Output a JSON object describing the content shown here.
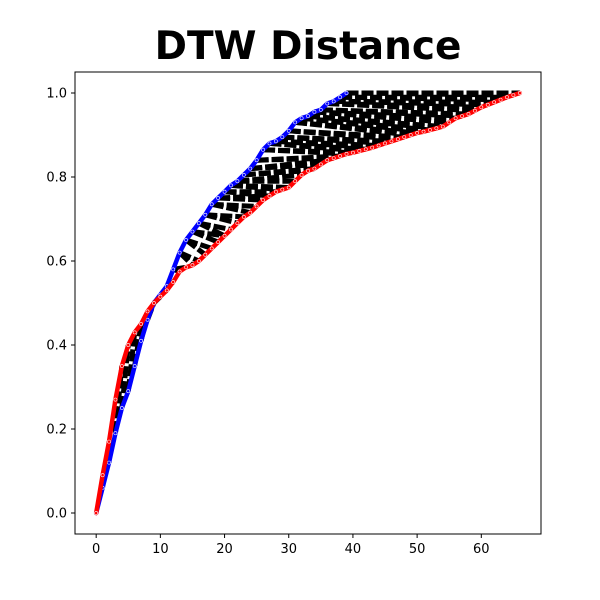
{
  "chart_data": {
    "type": "line",
    "title": "DTW Distance",
    "xlabel": "",
    "ylabel": "",
    "xlim": [
      -3.3,
      69.3
    ],
    "ylim": [
      -0.05,
      1.05
    ],
    "x_ticks": [
      "0",
      "10",
      "20",
      "30",
      "40",
      "50",
      "60"
    ],
    "y_ticks": [
      "0.0",
      "0.2",
      "0.4",
      "0.6",
      "0.8",
      "1.0"
    ],
    "grid": false,
    "legend": "none",
    "series": [
      {
        "color": "#0000ff",
        "x": [
          0,
          1,
          2,
          3,
          4,
          5,
          6,
          7,
          8,
          9,
          10,
          11,
          12,
          13,
          14,
          15,
          16,
          17,
          18,
          19,
          20,
          21,
          22,
          23,
          24,
          25,
          26,
          27,
          28,
          29,
          30,
          31,
          32,
          33,
          34,
          35,
          36,
          37,
          38,
          39
        ],
        "values": [
          0.0,
          0.06,
          0.12,
          0.19,
          0.25,
          0.29,
          0.35,
          0.41,
          0.46,
          0.5,
          0.52,
          0.54,
          0.58,
          0.62,
          0.65,
          0.67,
          0.69,
          0.71,
          0.735,
          0.75,
          0.765,
          0.78,
          0.79,
          0.805,
          0.82,
          0.84,
          0.865,
          0.88,
          0.885,
          0.895,
          0.91,
          0.93,
          0.94,
          0.945,
          0.955,
          0.96,
          0.975,
          0.98,
          0.99,
          1.0
        ]
      },
      {
        "color": "#ff0000",
        "x": [
          0,
          1,
          2,
          3,
          4,
          5,
          6,
          7,
          8,
          9,
          10,
          11,
          12,
          13,
          14,
          15,
          16,
          17,
          18,
          19,
          20,
          21,
          22,
          23,
          24,
          25,
          26,
          27,
          28,
          29,
          30,
          31,
          32,
          33,
          34,
          35,
          36,
          37,
          38,
          39,
          40,
          41,
          42,
          43,
          44,
          45,
          46,
          47,
          48,
          49,
          50,
          51,
          52,
          53,
          54,
          55,
          56,
          57,
          58,
          59,
          60,
          61,
          62,
          63,
          64,
          65,
          66
        ],
        "values": [
          0.0,
          0.09,
          0.17,
          0.27,
          0.35,
          0.4,
          0.43,
          0.45,
          0.48,
          0.5,
          0.515,
          0.53,
          0.55,
          0.575,
          0.585,
          0.59,
          0.6,
          0.615,
          0.63,
          0.645,
          0.66,
          0.675,
          0.69,
          0.705,
          0.715,
          0.73,
          0.745,
          0.755,
          0.765,
          0.77,
          0.775,
          0.79,
          0.805,
          0.815,
          0.82,
          0.83,
          0.84,
          0.845,
          0.85,
          0.855,
          0.858,
          0.862,
          0.866,
          0.87,
          0.875,
          0.88,
          0.885,
          0.89,
          0.895,
          0.9,
          0.905,
          0.908,
          0.912,
          0.916,
          0.92,
          0.93,
          0.94,
          0.945,
          0.95,
          0.958,
          0.966,
          0.972,
          0.978,
          0.984,
          0.99,
          0.995,
          1.0
        ]
      }
    ],
    "warping_path_color": "#000000",
    "warping_path": [
      [
        0,
        0
      ],
      [
        1,
        1
      ],
      [
        2,
        2
      ],
      [
        3,
        3
      ],
      [
        3,
        4
      ],
      [
        4,
        5
      ],
      [
        5,
        6
      ],
      [
        6,
        7
      ],
      [
        7,
        8
      ],
      [
        8,
        9
      ],
      [
        9,
        10
      ],
      [
        10,
        11
      ],
      [
        11,
        11
      ],
      [
        11,
        12
      ],
      [
        12,
        13
      ],
      [
        12,
        14
      ],
      [
        13,
        15
      ],
      [
        13,
        16
      ],
      [
        14,
        17
      ],
      [
        14,
        18
      ],
      [
        15,
        19
      ],
      [
        15,
        20
      ],
      [
        16,
        20
      ],
      [
        16,
        21
      ],
      [
        17,
        22
      ],
      [
        17,
        23
      ],
      [
        18,
        24
      ],
      [
        18,
        25
      ],
      [
        19,
        26
      ],
      [
        19,
        27
      ],
      [
        20,
        27
      ],
      [
        20,
        28
      ],
      [
        21,
        29
      ],
      [
        21,
        30
      ],
      [
        22,
        31
      ],
      [
        22,
        32
      ],
      [
        23,
        33
      ],
      [
        23,
        34
      ],
      [
        24,
        35
      ],
      [
        24,
        36
      ],
      [
        25,
        37
      ],
      [
        25,
        38
      ],
      [
        26,
        39
      ],
      [
        26,
        40
      ],
      [
        27,
        41
      ],
      [
        27,
        42
      ],
      [
        28,
        43
      ],
      [
        28,
        44
      ],
      [
        29,
        45
      ],
      [
        29,
        46
      ],
      [
        30,
        47
      ],
      [
        30,
        48
      ],
      [
        31,
        49
      ],
      [
        31,
        50
      ],
      [
        32,
        51
      ],
      [
        32,
        52
      ],
      [
        33,
        53
      ],
      [
        33,
        54
      ],
      [
        34,
        55
      ],
      [
        34,
        56
      ],
      [
        35,
        57
      ],
      [
        35,
        58
      ],
      [
        36,
        59
      ],
      [
        36,
        60
      ],
      [
        37,
        61
      ],
      [
        37,
        62
      ],
      [
        38,
        63
      ],
      [
        38,
        64
      ],
      [
        39,
        65
      ],
      [
        39,
        66
      ]
    ]
  }
}
